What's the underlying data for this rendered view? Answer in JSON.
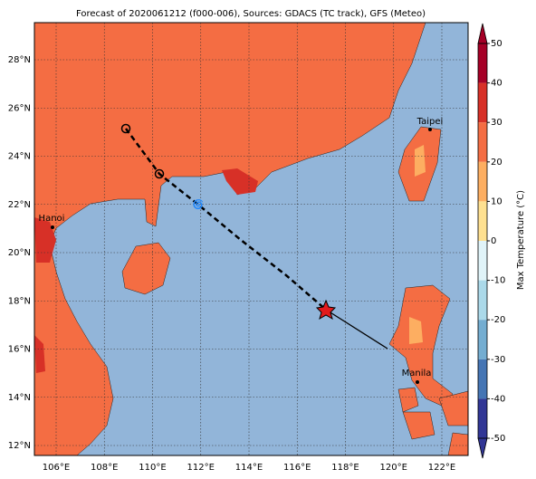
{
  "title": "Forecast of 2020061212 (f000-006), Sources: GDACS (TC track), GFS (Meteo)",
  "map": {
    "lon_ticks": [
      {
        "value": 106,
        "label": "106°E"
      },
      {
        "value": 108,
        "label": "108°E"
      },
      {
        "value": 110,
        "label": "110°E"
      },
      {
        "value": 112,
        "label": "112°E"
      },
      {
        "value": 114,
        "label": "114°E"
      },
      {
        "value": 116,
        "label": "116°E"
      },
      {
        "value": 118,
        "label": "118°E"
      },
      {
        "value": 120,
        "label": "120°E"
      },
      {
        "value": 122,
        "label": "122°E"
      }
    ],
    "lat_ticks": [
      {
        "value": 28,
        "label": "28°N"
      },
      {
        "value": 26,
        "label": "26°N"
      },
      {
        "value": 24,
        "label": "24°N"
      },
      {
        "value": 22,
        "label": "22°N"
      },
      {
        "value": 20,
        "label": "20°N"
      },
      {
        "value": 18,
        "label": "18°N"
      },
      {
        "value": 16,
        "label": "16°N"
      },
      {
        "value": 14,
        "label": "14°N"
      },
      {
        "value": 12,
        "label": "12°N"
      }
    ],
    "cities": [
      "Taipei",
      "Hanoi",
      "Manila"
    ]
  },
  "colorbar": {
    "label": "Max Temperature (°C)",
    "ticks": [
      50,
      40,
      30,
      20,
      10,
      0,
      -10,
      -20,
      -30,
      -40,
      -50
    ],
    "colors": [
      "#a50026",
      "#d73027",
      "#f46d43",
      "#fdae61",
      "#fee090",
      "#e0f3f8",
      "#abd9e9",
      "#74add1",
      "#4575b4",
      "#313695"
    ]
  }
}
